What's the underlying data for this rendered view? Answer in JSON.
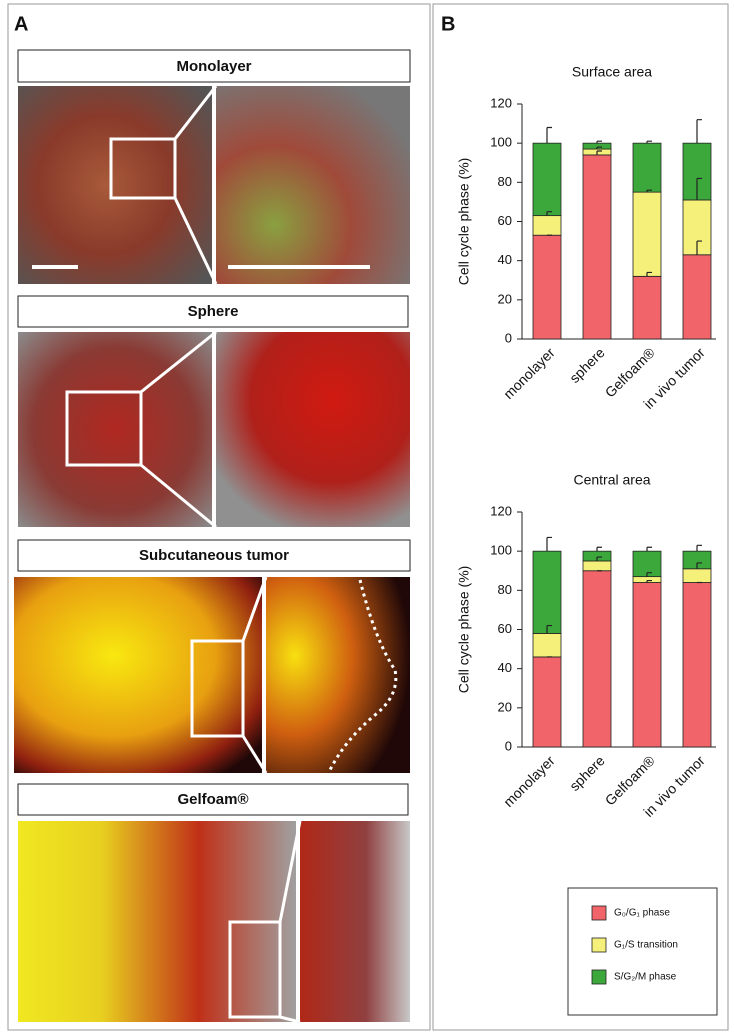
{
  "panels": {
    "a": {
      "label": "A",
      "titles": [
        "Monolayer",
        "Sphere",
        "Subcutaneous tumor",
        "Gelfoam®"
      ]
    },
    "b": {
      "label": "B"
    }
  },
  "chart_data": [
    {
      "type": "bar",
      "stacked": true,
      "title": "Surface area",
      "y_label": "Cell cycle phase (%)",
      "categories": [
        "monolayer",
        "sphere",
        "Gelfoam®",
        "in vivo tumor"
      ],
      "ylim": [
        0,
        120
      ],
      "yticks": [
        0,
        20,
        40,
        60,
        80,
        100,
        120
      ],
      "series": [
        {
          "name": "G₀/G₁ phase",
          "color": "#f0646a",
          "values": [
            53,
            94,
            32,
            43
          ],
          "errors": [
            0,
            2,
            2,
            7
          ]
        },
        {
          "name": "G₁/S transition",
          "color": "#f5f07a",
          "values": [
            10,
            3,
            43,
            28
          ],
          "errors": [
            2,
            1,
            1,
            11
          ]
        },
        {
          "name": "S/G₂/M phase",
          "color": "#3ca83c",
          "values": [
            37,
            3,
            25,
            29
          ],
          "errors": [
            8,
            1,
            1,
            12
          ]
        }
      ]
    },
    {
      "type": "bar",
      "stacked": true,
      "title": "Central area",
      "y_label": "Cell cycle phase (%)",
      "categories": [
        "monolayer",
        "sphere",
        "Gelfoam®",
        "in vivo tumor"
      ],
      "ylim": [
        0,
        120
      ],
      "yticks": [
        0,
        20,
        40,
        60,
        80,
        100,
        120
      ],
      "series": [
        {
          "color": "#f0646a",
          "values": [
            46,
            90,
            84,
            84
          ],
          "errors": [
            0,
            0,
            1,
            0
          ]
        },
        {
          "color": "#f5f07a",
          "values": [
            12,
            5,
            3,
            7
          ],
          "errors": [
            4,
            2,
            2,
            3
          ]
        },
        {
          "color": "#3ca83c",
          "values": [
            42,
            5,
            13,
            9
          ],
          "errors": [
            7,
            2,
            2,
            3
          ]
        }
      ]
    }
  ]
}
